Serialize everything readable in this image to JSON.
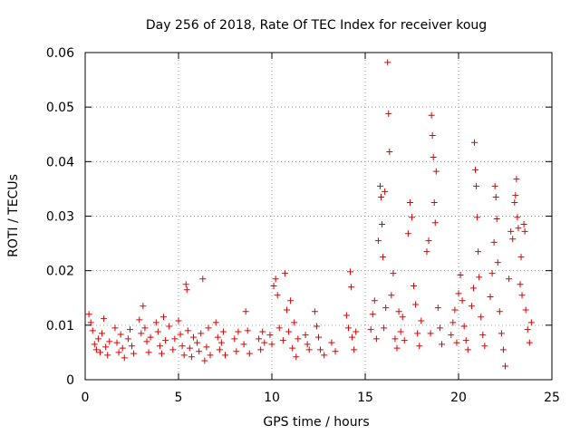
{
  "chart_data": {
    "type": "scatter",
    "title": "Day 256 of 2018, Rate Of TEC Index for receiver koug",
    "xlabel": "GPS time / hours",
    "ylabel": "ROTI / TECUs",
    "xlim": [
      0,
      25
    ],
    "ylim": [
      0,
      0.06
    ],
    "xticks": [
      "0",
      "5",
      "10",
      "15",
      "20",
      "25"
    ],
    "yticks": [
      "0",
      "0.01",
      "0.02",
      "0.03",
      "0.04",
      "0.05",
      "0.06"
    ],
    "grid": true,
    "marker": "+",
    "color": "#e00000",
    "series": [
      {
        "name": "ROTI",
        "points": [
          [
            0.2,
            0.012
          ],
          [
            0.3,
            0.0105
          ],
          [
            0.4,
            0.009
          ],
          [
            0.5,
            0.0065
          ],
          [
            0.6,
            0.0055
          ],
          [
            0.7,
            0.0075
          ],
          [
            0.8,
            0.005
          ],
          [
            0.9,
            0.0085
          ],
          [
            1.0,
            0.0112
          ],
          [
            1.1,
            0.006
          ],
          [
            1.2,
            0.0045
          ],
          [
            1.3,
            0.007
          ],
          [
            1.6,
            0.0095
          ],
          [
            1.7,
            0.0068
          ],
          [
            1.8,
            0.005
          ],
          [
            1.9,
            0.0083
          ],
          [
            2.0,
            0.0058
          ],
          [
            2.1,
            0.004
          ],
          [
            2.3,
            0.0075
          ],
          [
            2.4,
            0.0092
          ],
          [
            2.5,
            0.0062
          ],
          [
            2.6,
            0.0048
          ],
          [
            2.9,
            0.011
          ],
          [
            3.0,
            0.0085
          ],
          [
            3.1,
            0.0135
          ],
          [
            3.2,
            0.0095
          ],
          [
            3.3,
            0.007
          ],
          [
            3.4,
            0.005
          ],
          [
            3.5,
            0.0078
          ],
          [
            3.8,
            0.0105
          ],
          [
            3.9,
            0.0088
          ],
          [
            4.0,
            0.0062
          ],
          [
            4.1,
            0.0048
          ],
          [
            4.2,
            0.0115
          ],
          [
            4.3,
            0.0072
          ],
          [
            4.5,
            0.0098
          ],
          [
            4.7,
            0.0055
          ],
          [
            4.8,
            0.0075
          ],
          [
            5.0,
            0.0108
          ],
          [
            5.1,
            0.0083
          ],
          [
            5.2,
            0.0062
          ],
          [
            5.3,
            0.0045
          ],
          [
            5.4,
            0.0175
          ],
          [
            5.45,
            0.0165
          ],
          [
            5.5,
            0.009
          ],
          [
            5.6,
            0.0058
          ],
          [
            5.7,
            0.0042
          ],
          [
            5.8,
            0.0078
          ],
          [
            6.0,
            0.0068
          ],
          [
            6.1,
            0.0052
          ],
          [
            6.2,
            0.0085
          ],
          [
            6.3,
            0.0185
          ],
          [
            6.4,
            0.0035
          ],
          [
            6.5,
            0.006
          ],
          [
            6.6,
            0.0095
          ],
          [
            6.7,
            0.0045
          ],
          [
            7.0,
            0.0105
          ],
          [
            7.1,
            0.0078
          ],
          [
            7.2,
            0.0055
          ],
          [
            7.3,
            0.0068
          ],
          [
            7.4,
            0.0088
          ],
          [
            7.5,
            0.0045
          ],
          [
            8.0,
            0.0075
          ],
          [
            8.1,
            0.0052
          ],
          [
            8.2,
            0.0088
          ],
          [
            8.5,
            0.0065
          ],
          [
            8.6,
            0.0125
          ],
          [
            8.7,
            0.009
          ],
          [
            8.8,
            0.0048
          ],
          [
            9.3,
            0.0075
          ],
          [
            9.4,
            0.0055
          ],
          [
            9.5,
            0.0088
          ],
          [
            9.6,
            0.0068
          ],
          [
            9.9,
            0.0082
          ],
          [
            10.0,
            0.0065
          ],
          [
            10.1,
            0.0172
          ],
          [
            10.2,
            0.0185
          ],
          [
            10.3,
            0.0155
          ],
          [
            10.4,
            0.0095
          ],
          [
            10.6,
            0.0072
          ],
          [
            10.7,
            0.0195
          ],
          [
            10.8,
            0.0128
          ],
          [
            10.9,
            0.0088
          ],
          [
            11.0,
            0.0145
          ],
          [
            11.1,
            0.0058
          ],
          [
            11.2,
            0.0105
          ],
          [
            11.3,
            0.0042
          ],
          [
            11.4,
            0.0075
          ],
          [
            11.8,
            0.0082
          ],
          [
            11.9,
            0.0065
          ],
          [
            12.0,
            0.0055
          ],
          [
            12.3,
            0.0125
          ],
          [
            12.4,
            0.0098
          ],
          [
            12.5,
            0.0078
          ],
          [
            12.6,
            0.0055
          ],
          [
            12.8,
            0.0045
          ],
          [
            13.2,
            0.0068
          ],
          [
            13.4,
            0.0052
          ],
          [
            14.0,
            0.0118
          ],
          [
            14.1,
            0.0095
          ],
          [
            14.2,
            0.0198
          ],
          [
            14.25,
            0.017
          ],
          [
            14.3,
            0.0078
          ],
          [
            14.4,
            0.0055
          ],
          [
            14.5,
            0.0088
          ],
          [
            15.3,
            0.0092
          ],
          [
            15.4,
            0.012
          ],
          [
            15.5,
            0.0145
          ],
          [
            15.6,
            0.0075
          ],
          [
            15.7,
            0.0255
          ],
          [
            15.8,
            0.0355
          ],
          [
            15.85,
            0.0335
          ],
          [
            15.9,
            0.0285
          ],
          [
            15.95,
            0.0225
          ],
          [
            16.0,
            0.0095
          ],
          [
            16.05,
            0.0345
          ],
          [
            16.1,
            0.0132
          ],
          [
            16.2,
            0.0582
          ],
          [
            16.25,
            0.0488
          ],
          [
            16.3,
            0.0418
          ],
          [
            16.4,
            0.0155
          ],
          [
            16.5,
            0.0195
          ],
          [
            16.6,
            0.0075
          ],
          [
            16.7,
            0.0058
          ],
          [
            16.8,
            0.0125
          ],
          [
            16.9,
            0.0088
          ],
          [
            17.0,
            0.0115
          ],
          [
            17.1,
            0.0072
          ],
          [
            17.3,
            0.0268
          ],
          [
            17.4,
            0.0325
          ],
          [
            17.5,
            0.0298
          ],
          [
            17.6,
            0.0172
          ],
          [
            17.7,
            0.0138
          ],
          [
            17.8,
            0.0085
          ],
          [
            17.9,
            0.0062
          ],
          [
            18.0,
            0.0108
          ],
          [
            18.3,
            0.0235
          ],
          [
            18.4,
            0.0255
          ],
          [
            18.5,
            0.0085
          ],
          [
            18.55,
            0.0485
          ],
          [
            18.6,
            0.0448
          ],
          [
            18.65,
            0.0408
          ],
          [
            18.7,
            0.0325
          ],
          [
            18.75,
            0.0288
          ],
          [
            18.8,
            0.0382
          ],
          [
            18.9,
            0.0132
          ],
          [
            19.0,
            0.0095
          ],
          [
            19.1,
            0.0065
          ],
          [
            19.6,
            0.0082
          ],
          [
            19.7,
            0.0105
          ],
          [
            19.8,
            0.0128
          ],
          [
            19.9,
            0.0068
          ],
          [
            20.0,
            0.0158
          ],
          [
            20.1,
            0.0192
          ],
          [
            20.2,
            0.0145
          ],
          [
            20.3,
            0.0098
          ],
          [
            20.4,
            0.0072
          ],
          [
            20.5,
            0.0055
          ],
          [
            20.7,
            0.0135
          ],
          [
            20.8,
            0.0168
          ],
          [
            20.85,
            0.0435
          ],
          [
            20.9,
            0.0385
          ],
          [
            20.95,
            0.0355
          ],
          [
            21.0,
            0.0298
          ],
          [
            21.05,
            0.0235
          ],
          [
            21.1,
            0.0188
          ],
          [
            21.2,
            0.0115
          ],
          [
            21.3,
            0.0082
          ],
          [
            21.4,
            0.0062
          ],
          [
            21.7,
            0.0152
          ],
          [
            21.8,
            0.0195
          ],
          [
            21.9,
            0.0252
          ],
          [
            21.95,
            0.0355
          ],
          [
            22.0,
            0.0335
          ],
          [
            22.05,
            0.0295
          ],
          [
            22.1,
            0.0215
          ],
          [
            22.2,
            0.0125
          ],
          [
            22.3,
            0.0085
          ],
          [
            22.4,
            0.0055
          ],
          [
            22.5,
            0.0025
          ],
          [
            22.7,
            0.0185
          ],
          [
            22.8,
            0.0272
          ],
          [
            22.9,
            0.0258
          ],
          [
            23.0,
            0.0325
          ],
          [
            23.05,
            0.0338
          ],
          [
            23.1,
            0.0368
          ],
          [
            23.15,
            0.0298
          ],
          [
            23.2,
            0.0278
          ],
          [
            23.3,
            0.0175
          ],
          [
            23.35,
            0.0225
          ],
          [
            23.4,
            0.0155
          ],
          [
            23.5,
            0.0285
          ],
          [
            23.55,
            0.0272
          ],
          [
            23.6,
            0.0128
          ],
          [
            23.7,
            0.0092
          ],
          [
            23.8,
            0.0068
          ],
          [
            23.9,
            0.0105
          ]
        ]
      }
    ]
  }
}
